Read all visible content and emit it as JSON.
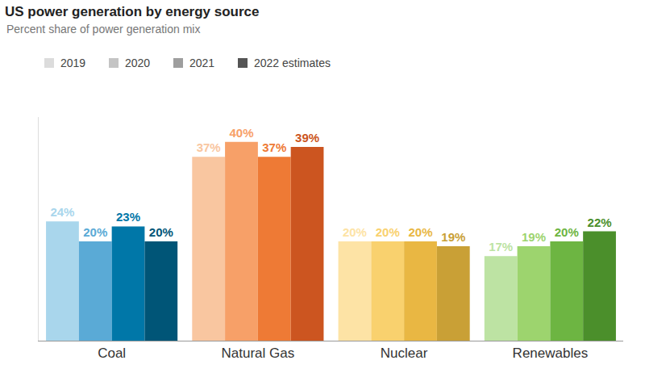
{
  "chart_data": {
    "type": "bar",
    "title": "US power generation by energy source",
    "subtitle": "Percent share of power generation mix",
    "categories": [
      "Coal",
      "Natural Gas",
      "Nuclear",
      "Renewables"
    ],
    "series": [
      {
        "name": "2019",
        "color": "#dcdcdc",
        "colors": [
          "#a9d6ec",
          "#f9c6a0",
          "#fde3a5",
          "#bde3a3"
        ],
        "values": [
          24,
          37,
          20,
          17
        ],
        "value_labels": [
          "24%",
          "37%",
          "20%",
          "17%"
        ]
      },
      {
        "name": "2020",
        "color": "#c4c4c4",
        "colors": [
          "#5aaad6",
          "#f7a068",
          "#f9d16e",
          "#9dd46e"
        ],
        "values": [
          20,
          40,
          20,
          19
        ],
        "value_labels": [
          "20%",
          "40%",
          "20%",
          "19%"
        ]
      },
      {
        "name": "2021",
        "color": "#9e9e9e",
        "colors": [
          "#0077a8",
          "#ee7a35",
          "#e9b743",
          "#6db542"
        ],
        "values": [
          23,
          37,
          20,
          20
        ],
        "value_labels": [
          "23%",
          "37%",
          "20%",
          "20%"
        ]
      },
      {
        "name": "2022 estimates",
        "color": "#555555",
        "colors": [
          "#005577",
          "#cc5520",
          "#c9a036",
          "#4b8f2b"
        ],
        "values": [
          20,
          39,
          19,
          22
        ],
        "value_labels": [
          "20%",
          "39%",
          "19%",
          "22%"
        ]
      }
    ],
    "ylim": [
      0,
      45
    ],
    "yticks": [],
    "grid": false,
    "legend": "top-left",
    "data_labels": true,
    "tick_labels": "x"
  }
}
